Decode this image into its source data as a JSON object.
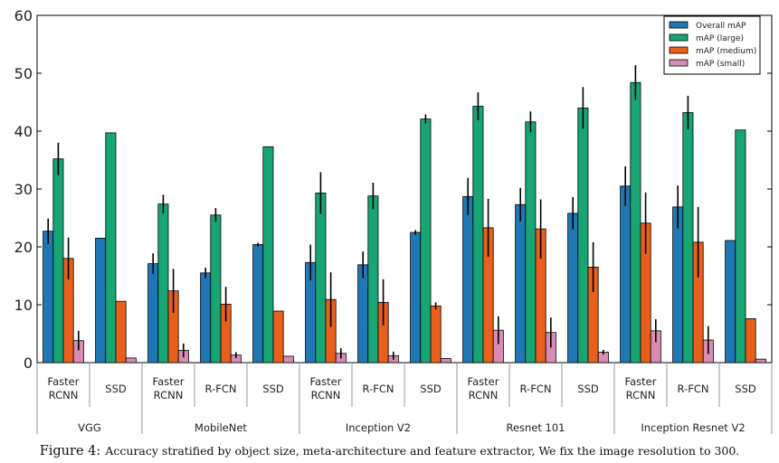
{
  "chart_data": {
    "type": "bar",
    "ylim": [
      0,
      60
    ],
    "yticks": [
      0,
      10,
      20,
      30,
      40,
      50,
      60
    ],
    "legend_position": "top-right",
    "series": [
      {
        "name": "Overall mAP",
        "color": "#1f77b4"
      },
      {
        "name": "mAP (large)",
        "color": "#17a673"
      },
      {
        "name": "mAP (medium)",
        "color": "#e8601c"
      },
      {
        "name": "mAP (small)",
        "color": "#d98cb3"
      }
    ],
    "groups": [
      {
        "name": "VGG",
        "categories": [
          {
            "label": "Faster\nRCNN",
            "values": [
              22.7,
              35.2,
              18.0,
              3.8
            ],
            "errors": [
              2.2,
              2.8,
              3.6,
              1.7
            ]
          },
          {
            "label": "SSD",
            "values": [
              21.5,
              39.7,
              10.6,
              0.8
            ],
            "errors": [
              0,
              0,
              0,
              0
            ]
          }
        ]
      },
      {
        "name": "MobileNet",
        "categories": [
          {
            "label": "Faster\nRCNN",
            "values": [
              17.1,
              27.4,
              12.4,
              2.1
            ],
            "errors": [
              1.8,
              1.6,
              3.8,
              1.2
            ]
          },
          {
            "label": "R-FCN",
            "values": [
              15.5,
              25.5,
              10.1,
              1.3
            ],
            "errors": [
              0.9,
              1.2,
              3.0,
              0.5
            ]
          },
          {
            "label": "SSD",
            "values": [
              20.4,
              37.3,
              8.9,
              1.1
            ],
            "errors": [
              0.3,
              0,
              0,
              0
            ]
          }
        ]
      },
      {
        "name": "Inception V2",
        "categories": [
          {
            "label": "Faster\nRCNN",
            "values": [
              17.3,
              29.3,
              10.9,
              1.6
            ],
            "errors": [
              3.1,
              3.6,
              4.7,
              0.9
            ]
          },
          {
            "label": "R-FCN",
            "values": [
              16.9,
              28.8,
              10.4,
              1.2
            ],
            "errors": [
              2.3,
              2.3,
              4.0,
              0.7
            ]
          },
          {
            "label": "SSD",
            "values": [
              22.5,
              42.1,
              9.8,
              0.7
            ],
            "errors": [
              0.4,
              0.8,
              0.6,
              0
            ]
          }
        ]
      },
      {
        "name": "Resnet 101",
        "categories": [
          {
            "label": "Faster\nRCNN",
            "values": [
              28.7,
              44.3,
              23.3,
              5.6
            ],
            "errors": [
              3.2,
              2.4,
              5.0,
              2.4
            ]
          },
          {
            "label": "R-FCN",
            "values": [
              27.3,
              41.6,
              23.1,
              5.2
            ],
            "errors": [
              2.9,
              1.8,
              5.1,
              2.6
            ]
          },
          {
            "label": "SSD",
            "values": [
              25.8,
              44.0,
              16.5,
              1.8
            ],
            "errors": [
              2.8,
              3.6,
              4.3,
              0.4
            ]
          }
        ]
      },
      {
        "name": "Inception Resnet V2",
        "categories": [
          {
            "label": "Faster\nRCNN",
            "values": [
              30.5,
              48.4,
              24.1,
              5.5
            ],
            "errors": [
              3.4,
              3.0,
              5.3,
              2.0
            ]
          },
          {
            "label": "R-FCN",
            "values": [
              26.9,
              43.2,
              20.8,
              3.9
            ],
            "errors": [
              3.7,
              2.9,
              6.1,
              2.4
            ]
          },
          {
            "label": "SSD",
            "values": [
              21.1,
              40.2,
              7.6,
              0.6
            ],
            "errors": [
              0,
              0,
              0,
              0
            ]
          }
        ]
      }
    ]
  },
  "caption": {
    "figure": "Figure 4:",
    "text": "Accuracy stratified by object size, meta-architecture and feature extractor, We fix the image resolution to 300."
  }
}
